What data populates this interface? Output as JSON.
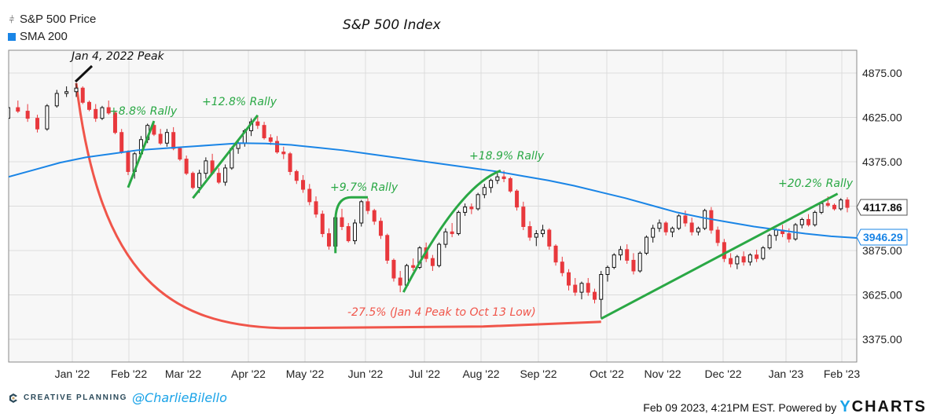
{
  "legend": {
    "items": [
      {
        "label": "S&P 500 Price",
        "icon": "candlestick-icon"
      },
      {
        "label": "SMA 200",
        "icon": "blue-square-icon",
        "color": "#1a85e6"
      }
    ]
  },
  "footer": {
    "brand": "CREATIVE PLANNING",
    "handle": "@CharlieBilello",
    "timestamp": "Feb 09 2023, 4:21PM EST.",
    "powered_by": "Powered by",
    "provider_y": "Y",
    "provider_rest": "CHARTS"
  },
  "chart_data": {
    "type": "candlestick",
    "title": "S&P 500 Index",
    "xlabel": "",
    "ylabel": "",
    "ylim": [
      3250,
      5000
    ],
    "y_ticks": [
      3375,
      3625,
      3875,
      4125,
      4375,
      4625,
      4875
    ],
    "y_tick_labels": [
      "3375.00",
      "3625.00",
      "3875.00",
      "",
      "4375.00",
      "4625.00",
      "4875.00"
    ],
    "x_tick_labels": [
      "Jan '22",
      "Feb '22",
      "Mar '22",
      "Apr '22",
      "May '22",
      "Jun '22",
      "Jul '22",
      "Aug '22",
      "Sep '22",
      "Oct '22",
      "Nov '22",
      "Dec '22",
      "Jan '23",
      "Feb '23"
    ],
    "grid": true,
    "legend_position": "top-left",
    "colors": {
      "up": "#ffffff",
      "up_border": "#111111",
      "down": "#e8383d",
      "sma": "#1a85e6",
      "rally": "#2aa845",
      "drawdown": "#f0554a",
      "annotation": "#111111"
    },
    "last_price": {
      "label": "4117.86",
      "value": 4117.86
    },
    "last_sma": {
      "label": "3946.29",
      "value": 3946.29
    },
    "sma_200": [
      [
        0,
        4290
      ],
      [
        10,
        4330
      ],
      [
        20,
        4370
      ],
      [
        30,
        4400
      ],
      [
        40,
        4420
      ],
      [
        50,
        4440
      ],
      [
        60,
        4450
      ],
      [
        70,
        4460
      ],
      [
        80,
        4470
      ],
      [
        90,
        4480
      ],
      [
        100,
        4478
      ],
      [
        110,
        4470
      ],
      [
        120,
        4455
      ],
      [
        130,
        4440
      ],
      [
        140,
        4420
      ],
      [
        150,
        4400
      ],
      [
        160,
        4380
      ],
      [
        170,
        4360
      ],
      [
        180,
        4340
      ],
      [
        190,
        4320
      ],
      [
        200,
        4295
      ],
      [
        210,
        4270
      ],
      [
        220,
        4240
      ],
      [
        230,
        4205
      ],
      [
        240,
        4170
      ],
      [
        250,
        4130
      ],
      [
        260,
        4090
      ],
      [
        270,
        4060
      ],
      [
        280,
        4035
      ],
      [
        290,
        4010
      ],
      [
        300,
        3990
      ],
      [
        310,
        3970
      ],
      [
        320,
        3955
      ],
      [
        330,
        3946
      ]
    ],
    "candles": [
      [
        -30,
        4660,
        4700,
        4560,
        4580
      ],
      [
        -27,
        4580,
        4600,
        4540,
        4560
      ],
      [
        -24,
        4560,
        4640,
        4550,
        4620
      ],
      [
        -21,
        4620,
        4700,
        4600,
        4680
      ],
      [
        -18,
        4680,
        4720,
        4650,
        4660
      ],
      [
        -15,
        4660,
        4700,
        4600,
        4620
      ],
      [
        -12,
        4620,
        4640,
        4540,
        4560
      ],
      [
        -9,
        4560,
        4700,
        4550,
        4690
      ],
      [
        -6,
        4690,
        4780,
        4680,
        4760
      ],
      [
        -3,
        4760,
        4800,
        4740,
        4770
      ],
      [
        0,
        4770,
        4818,
        4740,
        4790
      ],
      [
        2,
        4790,
        4800,
        4700,
        4710
      ],
      [
        4,
        4710,
        4720,
        4660,
        4670
      ],
      [
        6,
        4670,
        4700,
        4600,
        4620
      ],
      [
        8,
        4620,
        4690,
        4610,
        4680
      ],
      [
        10,
        4680,
        4720,
        4640,
        4650
      ],
      [
        12,
        4650,
        4660,
        4530,
        4540
      ],
      [
        14,
        4540,
        4560,
        4420,
        4430
      ],
      [
        16,
        4430,
        4440,
        4300,
        4320
      ],
      [
        18,
        4320,
        4430,
        4280,
        4420
      ],
      [
        20,
        4420,
        4520,
        4400,
        4500
      ],
      [
        22,
        4500,
        4590,
        4480,
        4580
      ],
      [
        24,
        4580,
        4600,
        4520,
        4530
      ],
      [
        26,
        4530,
        4560,
        4470,
        4480
      ],
      [
        28,
        4480,
        4560,
        4460,
        4540
      ],
      [
        30,
        4540,
        4570,
        4440,
        4450
      ],
      [
        32,
        4450,
        4460,
        4380,
        4390
      ],
      [
        34,
        4390,
        4410,
        4300,
        4310
      ],
      [
        36,
        4310,
        4320,
        4220,
        4230
      ],
      [
        38,
        4230,
        4330,
        4200,
        4310
      ],
      [
        40,
        4310,
        4400,
        4280,
        4380
      ],
      [
        42,
        4380,
        4420,
        4300,
        4310
      ],
      [
        44,
        4310,
        4340,
        4250,
        4260
      ],
      [
        46,
        4260,
        4360,
        4240,
        4340
      ],
      [
        48,
        4340,
        4460,
        4330,
        4450
      ],
      [
        50,
        4450,
        4500,
        4420,
        4480
      ],
      [
        52,
        4480,
        4560,
        4460,
        4550
      ],
      [
        54,
        4550,
        4620,
        4520,
        4600
      ],
      [
        56,
        4600,
        4637,
        4560,
        4580
      ],
      [
        58,
        4580,
        4600,
        4500,
        4510
      ],
      [
        60,
        4510,
        4530,
        4470,
        4490
      ],
      [
        62,
        4490,
        4520,
        4420,
        4430
      ],
      [
        64,
        4430,
        4460,
        4390,
        4420
      ],
      [
        66,
        4420,
        4430,
        4300,
        4320
      ],
      [
        68,
        4320,
        4330,
        4250,
        4270
      ],
      [
        70,
        4270,
        4300,
        4200,
        4220
      ],
      [
        72,
        4220,
        4250,
        4130,
        4150
      ],
      [
        74,
        4150,
        4180,
        4060,
        4080
      ],
      [
        76,
        4080,
        4100,
        3950,
        3970
      ],
      [
        78,
        3970,
        4000,
        3880,
        3900
      ],
      [
        80,
        3900,
        4080,
        3880,
        4060
      ],
      [
        82,
        4060,
        4110,
        3990,
        4010
      ],
      [
        84,
        4010,
        4030,
        3920,
        3930
      ],
      [
        86,
        3930,
        4050,
        3910,
        4030
      ],
      [
        88,
        4030,
        4160,
        4010,
        4150
      ],
      [
        90,
        4150,
        4170,
        4080,
        4100
      ],
      [
        92,
        4100,
        4110,
        4020,
        4040
      ],
      [
        94,
        4040,
        4060,
        3940,
        3960
      ],
      [
        96,
        3960,
        3970,
        3800,
        3820
      ],
      [
        98,
        3820,
        3830,
        3700,
        3720
      ],
      [
        100,
        3720,
        3760,
        3640,
        3680
      ],
      [
        102,
        3680,
        3800,
        3670,
        3790
      ],
      [
        104,
        3790,
        3830,
        3760,
        3780
      ],
      [
        106,
        3780,
        3900,
        3770,
        3890
      ],
      [
        108,
        3890,
        3920,
        3810,
        3830
      ],
      [
        110,
        3830,
        3850,
        3760,
        3790
      ],
      [
        112,
        3790,
        3920,
        3780,
        3910
      ],
      [
        114,
        3910,
        4000,
        3890,
        3980
      ],
      [
        116,
        3980,
        4030,
        3950,
        3970
      ],
      [
        118,
        3970,
        4100,
        3960,
        4090
      ],
      [
        120,
        4090,
        4140,
        4070,
        4120
      ],
      [
        122,
        4120,
        4140,
        4080,
        4110
      ],
      [
        124,
        4110,
        4200,
        4100,
        4190
      ],
      [
        126,
        4190,
        4250,
        4170,
        4230
      ],
      [
        128,
        4230,
        4280,
        4200,
        4270
      ],
      [
        130,
        4270,
        4310,
        4250,
        4290
      ],
      [
        132,
        4290,
        4325,
        4260,
        4280
      ],
      [
        134,
        4280,
        4290,
        4200,
        4210
      ],
      [
        136,
        4210,
        4220,
        4100,
        4120
      ],
      [
        138,
        4120,
        4150,
        3990,
        4010
      ],
      [
        140,
        4010,
        4040,
        3930,
        3950
      ],
      [
        142,
        3950,
        3990,
        3900,
        3970
      ],
      [
        144,
        3970,
        4020,
        3950,
        3990
      ],
      [
        146,
        3990,
        4000,
        3880,
        3900
      ],
      [
        148,
        3900,
        3910,
        3790,
        3810
      ],
      [
        150,
        3810,
        3840,
        3730,
        3750
      ],
      [
        152,
        3750,
        3770,
        3650,
        3680
      ],
      [
        154,
        3680,
        3720,
        3620,
        3640
      ],
      [
        156,
        3640,
        3700,
        3600,
        3690
      ],
      [
        158,
        3690,
        3720,
        3620,
        3640
      ],
      [
        160,
        3640,
        3660,
        3577,
        3600
      ],
      [
        162,
        3600,
        3760,
        3491,
        3740
      ],
      [
        164,
        3740,
        3790,
        3700,
        3780
      ],
      [
        166,
        3780,
        3860,
        3770,
        3850
      ],
      [
        168,
        3850,
        3900,
        3820,
        3880
      ],
      [
        170,
        3880,
        3910,
        3800,
        3820
      ],
      [
        172,
        3820,
        3860,
        3740,
        3760
      ],
      [
        174,
        3760,
        3870,
        3750,
        3860
      ],
      [
        176,
        3860,
        3960,
        3850,
        3950
      ],
      [
        178,
        3950,
        4020,
        3920,
        4000
      ],
      [
        180,
        4000,
        4050,
        3980,
        4030
      ],
      [
        182,
        4030,
        4040,
        3960,
        3980
      ],
      [
        184,
        3980,
        4010,
        3950,
        4000
      ],
      [
        186,
        4000,
        4080,
        3990,
        4070
      ],
      [
        188,
        4070,
        4100,
        4010,
        4030
      ],
      [
        190,
        4030,
        4060,
        3960,
        3980
      ],
      [
        192,
        3980,
        4010,
        3960,
        4000
      ],
      [
        194,
        4000,
        4110,
        3990,
        4100
      ],
      [
        196,
        4100,
        4120,
        3970,
        3990
      ],
      [
        198,
        3990,
        4010,
        3900,
        3920
      ],
      [
        200,
        3920,
        3940,
        3810,
        3830
      ],
      [
        202,
        3830,
        3860,
        3780,
        3800
      ],
      [
        204,
        3800,
        3850,
        3770,
        3840
      ],
      [
        206,
        3840,
        3870,
        3790,
        3810
      ],
      [
        208,
        3810,
        3860,
        3790,
        3850
      ],
      [
        210,
        3850,
        3880,
        3810,
        3830
      ],
      [
        212,
        3830,
        3900,
        3820,
        3890
      ],
      [
        214,
        3890,
        3970,
        3880,
        3960
      ],
      [
        216,
        3960,
        4000,
        3930,
        3990
      ],
      [
        218,
        3990,
        4020,
        3950,
        3970
      ],
      [
        220,
        3970,
        4000,
        3920,
        3940
      ],
      [
        222,
        3940,
        4030,
        3930,
        4020
      ],
      [
        224,
        4020,
        4060,
        4000,
        4050
      ],
      [
        226,
        4050,
        4080,
        4010,
        4020
      ],
      [
        228,
        4020,
        4100,
        4010,
        4090
      ],
      [
        230,
        4090,
        4150,
        4080,
        4140
      ],
      [
        232,
        4140,
        4180,
        4120,
        4130
      ],
      [
        234,
        4130,
        4140,
        4100,
        4110
      ],
      [
        236,
        4110,
        4170,
        4100,
        4160
      ],
      [
        238,
        4160,
        4175,
        4090,
        4118
      ]
    ],
    "annotations": [
      {
        "text": "Jan 4, 2022 Peak",
        "color": "#111111",
        "type": "label-with-arrow"
      },
      {
        "text": "+8.8% Rally",
        "color": "#2aa845",
        "type": "rally",
        "from": [
          16,
          4230
        ],
        "to": [
          24,
          4605
        ]
      },
      {
        "text": "+12.8% Rally",
        "color": "#2aa845",
        "type": "rally",
        "from": [
          36,
          4170
        ],
        "to": [
          56,
          4637
        ]
      },
      {
        "text": "+9.7% Rally",
        "color": "#2aa845",
        "type": "rally",
        "from": [
          80,
          3860
        ],
        "to": [
          90,
          4175
        ]
      },
      {
        "text": "+18.9% Rally",
        "color": "#2aa845",
        "type": "rally",
        "from": [
          101,
          3640
        ],
        "to": [
          131,
          4325
        ]
      },
      {
        "text": "+20.2% Rally",
        "color": "#2aa845",
        "type": "rally",
        "from": [
          162,
          3491
        ],
        "to": [
          235,
          4195
        ]
      },
      {
        "text": "-27.5% (Jan 4 Peak to Oct 13 Low)",
        "color": "#f0554a",
        "type": "drawdown",
        "from": [
          0,
          4818
        ],
        "to": [
          162,
          3491
        ]
      }
    ]
  }
}
